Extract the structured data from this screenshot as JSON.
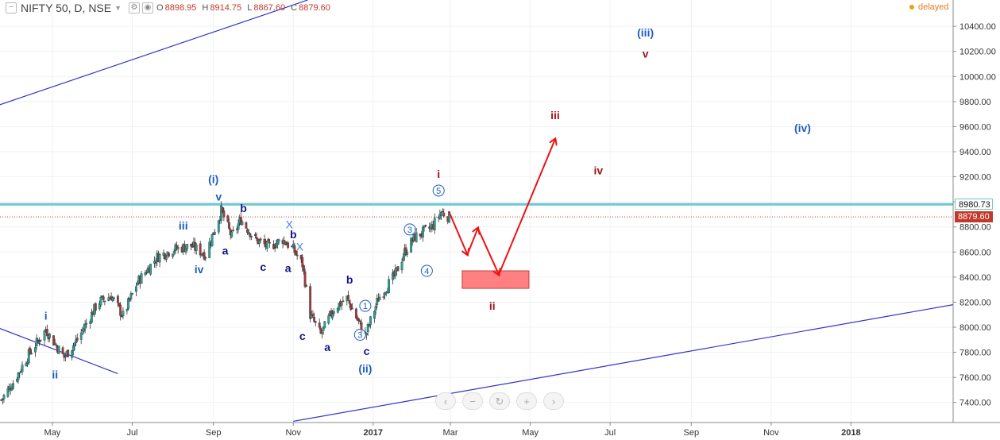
{
  "legend": {
    "symbol": "NIFTY 50, D, NSE",
    "open_label": "O",
    "open": "8898.95",
    "high_label": "H",
    "high": "8914.75",
    "low_label": "L",
    "low": "8867.60",
    "close_label": "C",
    "close": "8879.60"
  },
  "status": "delayed",
  "price_badges": {
    "resistance": "8980.73",
    "last": "8879.60"
  },
  "colors": {
    "up": "#26a69a",
    "down": "#a33b3b",
    "channel": "#3333cc",
    "resistance_line": "#6ec6d0",
    "forecast_arrow": "#ee1111",
    "target_zone": "#ff8080",
    "wave_blue": "#1f5fbf",
    "wave_navy": "#14148a",
    "wave_red": "#a31515"
  },
  "nav_icons": [
    "chevron-left-icon",
    "minus-icon",
    "reset-icon",
    "plus-icon",
    "chevron-right-icon"
  ],
  "chart_data": {
    "type": "candlestick",
    "symbol": "NIFTY 50",
    "interval": "D",
    "exchange": "NSE",
    "x_tick_labels": [
      "May",
      "Jul",
      "Sep",
      "Nov",
      "2017",
      "Mar",
      "May",
      "Jul",
      "Sep",
      "Nov",
      "2018"
    ],
    "y_tick_labels": [
      "7400.00",
      "7600.00",
      "7800.00",
      "8000.00",
      "8200.00",
      "8400.00",
      "8600.00",
      "8800.00",
      "9000.00",
      "9200.00",
      "9400.00",
      "9600.00",
      "9800.00",
      "10000.00",
      "10200.00",
      "10400.00"
    ],
    "ylim": [
      7240,
      10610
    ],
    "xlim": [
      "2016-03-22",
      "2018-03-20"
    ],
    "price_path": [
      [
        "2016-03-23",
        7420
      ],
      [
        "2016-04-01",
        7560
      ],
      [
        "2016-04-14",
        7800
      ],
      [
        "2016-04-26",
        7980
      ],
      [
        "2016-05-10",
        7760
      ],
      [
        "2016-05-20",
        7900
      ],
      [
        "2016-06-05",
        8200
      ],
      [
        "2016-06-15",
        8250
      ],
      [
        "2016-06-24",
        8090
      ],
      [
        "2016-07-05",
        8360
      ],
      [
        "2016-07-20",
        8560
      ],
      [
        "2016-08-01",
        8620
      ],
      [
        "2016-08-15",
        8650
      ],
      [
        "2016-08-26",
        8580
      ],
      [
        "2016-09-07",
        8930
      ],
      [
        "2016-09-15",
        8720
      ],
      [
        "2016-09-22",
        8860
      ],
      [
        "2016-10-03",
        8700
      ],
      [
        "2016-10-13",
        8640
      ],
      [
        "2016-10-24",
        8700
      ],
      [
        "2016-11-01",
        8620
      ],
      [
        "2016-11-08",
        8500
      ],
      [
        "2016-11-14",
        8100
      ],
      [
        "2016-11-22",
        7940
      ],
      [
        "2016-12-02",
        8150
      ],
      [
        "2016-12-12",
        8230
      ],
      [
        "2016-12-26",
        7930
      ],
      [
        "2017-01-05",
        8230
      ],
      [
        "2017-01-18",
        8420
      ],
      [
        "2017-01-25",
        8600
      ],
      [
        "2017-02-02",
        8720
      ],
      [
        "2017-02-15",
        8800
      ],
      [
        "2017-02-22",
        8920
      ],
      [
        "2017-02-28",
        8880
      ]
    ],
    "last_bar": {
      "open": 8898.95,
      "high": 8914.75,
      "low": 8867.6,
      "close": 8879.6
    },
    "horizontal_line": 8980.73,
    "last_price_line": 8879.6,
    "channel_lines": [
      {
        "from": [
          "2016-03-22",
          9775
        ],
        "to": [
          "2016-11-12",
          10610
        ]
      },
      {
        "from": [
          "2016-11-01",
          7250
        ],
        "to": [
          "2018-03-20",
          8180
        ]
      },
      {
        "from": [
          "2016-03-22",
          7990
        ],
        "to": [
          "2016-06-20",
          7630
        ]
      }
    ],
    "forecast_path": [
      [
        "2017-02-28",
        8920
      ],
      [
        "2017-03-14",
        8580
      ],
      [
        "2017-03-22",
        8790
      ],
      [
        "2017-04-07",
        8420
      ],
      [
        "2017-05-20",
        9500
      ]
    ],
    "target_zone": {
      "x0": "2017-03-10",
      "x1": "2017-04-30",
      "y0": 8310,
      "y1": 8450
    },
    "wave_labels": [
      {
        "text": "i",
        "x": "2016-04-26",
        "y": 8060,
        "color": "wave_blue"
      },
      {
        "text": "ii",
        "x": "2016-05-03",
        "y": 7590,
        "color": "wave_blue"
      },
      {
        "text": "iii",
        "x": "2016-08-09",
        "y": 8780,
        "color": "wave_blue"
      },
      {
        "text": "iv",
        "x": "2016-08-21",
        "y": 8430,
        "color": "wave_blue"
      },
      {
        "text": "(i)",
        "x": "2016-09-01",
        "y": 9150,
        "color": "wave_blue"
      },
      {
        "text": "v",
        "x": "2016-09-05",
        "y": 9010,
        "color": "wave_blue"
      },
      {
        "text": "b",
        "x": "2016-09-24",
        "y": 8920,
        "color": "wave_navy"
      },
      {
        "text": "a",
        "x": "2016-09-10",
        "y": 8580,
        "color": "wave_navy"
      },
      {
        "text": "c",
        "x": "2016-10-09",
        "y": 8450,
        "color": "wave_navy"
      },
      {
        "text": "a",
        "x": "2016-10-28",
        "y": 8440,
        "color": "wave_navy"
      },
      {
        "text": "b",
        "x": "2016-11-01",
        "y": 8710,
        "color": "wave_navy"
      },
      {
        "text": "c",
        "x": "2016-11-08",
        "y": 7900,
        "color": "wave_navy"
      },
      {
        "text": "a",
        "x": "2016-11-27",
        "y": 7810,
        "color": "wave_navy"
      },
      {
        "text": "b",
        "x": "2016-12-14",
        "y": 8350,
        "color": "wave_navy"
      },
      {
        "text": "c",
        "x": "2016-12-27",
        "y": 7780,
        "color": "wave_navy"
      },
      {
        "text": "(ii)",
        "x": "2016-12-26",
        "y": 7640,
        "color": "wave_blue"
      },
      {
        "text": "i",
        "x": "2017-02-20",
        "y": 9190,
        "color": "wave_red"
      },
      {
        "text": "iii",
        "x": "2017-05-20",
        "y": 9660,
        "color": "wave_red"
      },
      {
        "text": "iv",
        "x": "2017-06-22",
        "y": 9220,
        "color": "wave_red"
      },
      {
        "text": "ii",
        "x": "2017-04-02",
        "y": 8140,
        "color": "wave_red"
      },
      {
        "text": "v",
        "x": "2017-07-28",
        "y": 10150,
        "color": "wave_red"
      },
      {
        "text": "(iii)",
        "x": "2017-07-28",
        "y": 10320,
        "color": "wave_blue"
      },
      {
        "text": "(iv)",
        "x": "2017-11-25",
        "y": 9560,
        "color": "wave_blue"
      }
    ],
    "circled_labels": [
      {
        "text": "1",
        "x": "2016-12-26",
        "y": 8170
      },
      {
        "text": "3",
        "x": "2017-01-29",
        "y": 8780
      },
      {
        "text": "4",
        "x": "2017-02-11",
        "y": 8450
      },
      {
        "text": "5",
        "x": "2017-02-20",
        "y": 9090
      },
      {
        "text": "3",
        "x": "2016-12-22",
        "y": 7940
      }
    ],
    "x_markers": [
      {
        "text": "X",
        "x": "2016-10-29",
        "y": 8790
      },
      {
        "text": "X",
        "x": "2016-11-06",
        "y": 8610
      }
    ]
  }
}
